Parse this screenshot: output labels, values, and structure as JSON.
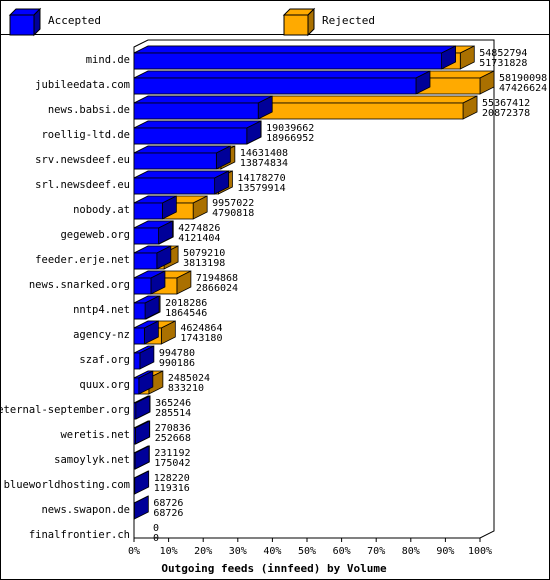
{
  "chart_data": {
    "type": "bar",
    "orientation": "horizontal",
    "stacking": "overlay",
    "title": "Outgoing feeds (innfeed) by Volume",
    "xlabel": "Outgoing feeds (innfeed) by Volume",
    "ylabel": "",
    "xlim": [
      0,
      100
    ],
    "x_unit": "%",
    "ticks": [
      "0%",
      "10%",
      "20%",
      "30%",
      "40%",
      "50%",
      "60%",
      "70%",
      "80%",
      "90%",
      "100%"
    ],
    "grid": false,
    "legend_position": "top",
    "series": [
      {
        "name": "Accepted",
        "color": "#0000ff",
        "side_color": "#000099"
      },
      {
        "name": "Rejected",
        "color": "#ffaa00",
        "side_color": "#aa7000"
      }
    ],
    "categories": [
      "mind.de",
      "jubileedata.com",
      "news.babsi.de",
      "roellig-ltd.de",
      "srv.newsdeef.eu",
      "srl.newsdeef.eu",
      "nobody.at",
      "gegeweb.org",
      "feeder.erje.net",
      "news.snarked.org",
      "nntp4.net",
      "agency-nz",
      "szaf.org",
      "quux.org",
      "eternal-september.org",
      "weretis.net",
      "samoylyk.net",
      "blueworldhosting.com",
      "news.swapon.de",
      "finalfrontier.ch"
    ],
    "rows": [
      {
        "label": "mind.de",
        "offered": "54852794",
        "accepted": "51731828",
        "offered_pct": 94.3,
        "accepted_pct": 88.9
      },
      {
        "label": "jubileedata.com",
        "offered": "58190098",
        "accepted": "47426624",
        "offered_pct": 100.0,
        "accepted_pct": 81.5
      },
      {
        "label": "news.babsi.de",
        "offered": "55367412",
        "accepted": "20872378",
        "offered_pct": 95.1,
        "accepted_pct": 35.9
      },
      {
        "label": "roellig-ltd.de",
        "offered": "19039662",
        "accepted": "18966952",
        "offered_pct": 32.7,
        "accepted_pct": 32.6
      },
      {
        "label": "srv.newsdeef.eu",
        "offered": "14631408",
        "accepted": "13874834",
        "offered_pct": 25.1,
        "accepted_pct": 23.8
      },
      {
        "label": "srl.newsdeef.eu",
        "offered": "14178270",
        "accepted": "13579914",
        "offered_pct": 24.4,
        "accepted_pct": 23.3
      },
      {
        "label": "nobody.at",
        "offered": "9957022",
        "accepted": "4790818",
        "offered_pct": 17.1,
        "accepted_pct": 8.2
      },
      {
        "label": "gegeweb.org",
        "offered": "4274826",
        "accepted": "4121404",
        "offered_pct": 7.3,
        "accepted_pct": 7.1
      },
      {
        "label": "feeder.erje.net",
        "offered": "5079210",
        "accepted": "3813198",
        "offered_pct": 8.7,
        "accepted_pct": 6.6
      },
      {
        "label": "news.snarked.org",
        "offered": "7194868",
        "accepted": "2866024",
        "offered_pct": 12.4,
        "accepted_pct": 4.9
      },
      {
        "label": "nntp4.net",
        "offered": "2018286",
        "accepted": "1864546",
        "offered_pct": 3.5,
        "accepted_pct": 3.2
      },
      {
        "label": "agency-nz",
        "offered": "4624864",
        "accepted": "1743180",
        "offered_pct": 7.9,
        "accepted_pct": 3.0
      },
      {
        "label": "szaf.org",
        "offered": "994780",
        "accepted": "990186",
        "offered_pct": 1.7,
        "accepted_pct": 1.7
      },
      {
        "label": "quux.org",
        "offered": "2485024",
        "accepted": "833210",
        "offered_pct": 4.3,
        "accepted_pct": 1.4
      },
      {
        "label": "eternal-september.org",
        "offered": "365246",
        "accepted": "285514",
        "offered_pct": 0.6,
        "accepted_pct": 0.5
      },
      {
        "label": "weretis.net",
        "offered": "270836",
        "accepted": "252668",
        "offered_pct": 0.5,
        "accepted_pct": 0.4
      },
      {
        "label": "samoylyk.net",
        "offered": "231192",
        "accepted": "175042",
        "offered_pct": 0.4,
        "accepted_pct": 0.3
      },
      {
        "label": "blueworldhosting.com",
        "offered": "128220",
        "accepted": "119316",
        "offered_pct": 0.2,
        "accepted_pct": 0.2
      },
      {
        "label": "news.swapon.de",
        "offered": "68726",
        "accepted": "68726",
        "offered_pct": 0.1,
        "accepted_pct": 0.1
      },
      {
        "label": "finalfrontier.ch",
        "offered": "0",
        "accepted": "0",
        "offered_pct": 0,
        "accepted_pct": 0
      }
    ]
  }
}
